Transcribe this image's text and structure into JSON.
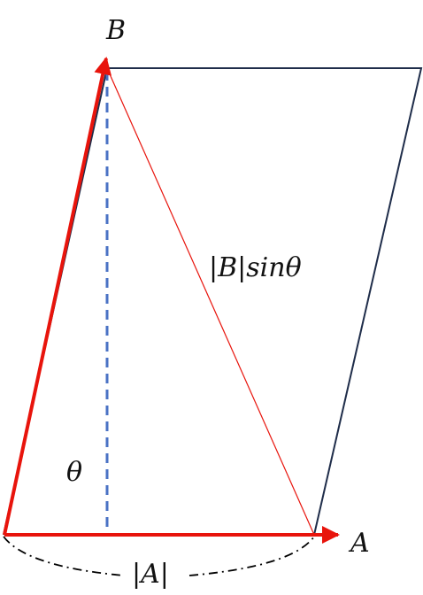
{
  "labels": {
    "vector_a": "A",
    "vector_b": "B",
    "angle": "θ",
    "height": "|B|sinθ",
    "base_length": "|A|"
  },
  "colors": {
    "vector": "#e8140c",
    "outline": "#1f2d4a",
    "height_dashed": "#4a72c4",
    "diagonal": "#e8140c",
    "brace": "#000000"
  }
}
